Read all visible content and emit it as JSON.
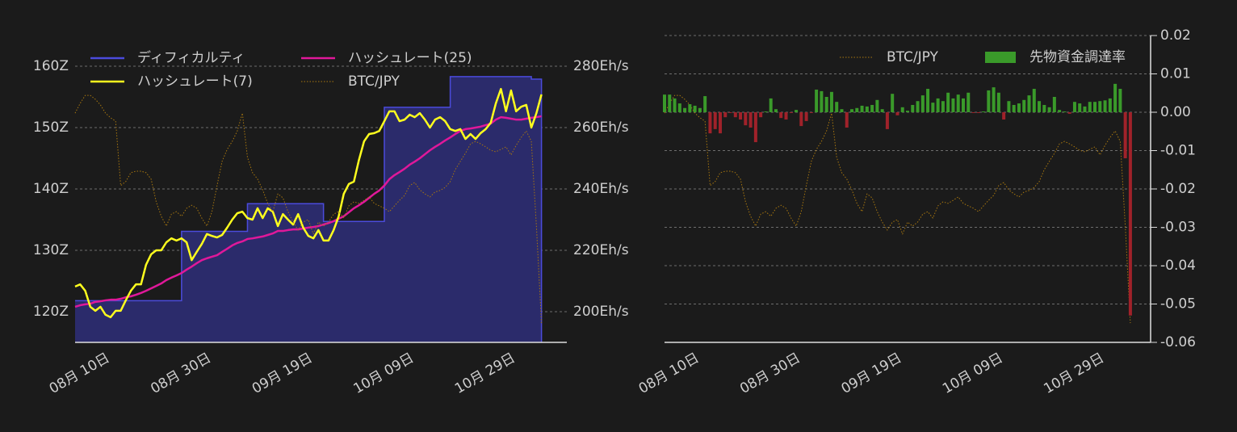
{
  "chart_data": [
    {
      "type": "line",
      "x": [
        "08-05",
        "08-06",
        "08-07",
        "08-08",
        "08-09",
        "08-10",
        "08-11",
        "08-12",
        "08-13",
        "08-14",
        "08-15",
        "08-16",
        "08-17",
        "08-18",
        "08-19",
        "08-20",
        "08-21",
        "08-22",
        "08-23",
        "08-24",
        "08-25",
        "08-26",
        "08-27",
        "08-28",
        "08-29",
        "08-30",
        "08-31",
        "09-01",
        "09-02",
        "09-03",
        "09-04",
        "09-05",
        "09-06",
        "09-07",
        "09-08",
        "09-09",
        "09-10",
        "09-11",
        "09-12",
        "09-13",
        "09-14",
        "09-15",
        "09-16",
        "09-17",
        "09-18",
        "09-19",
        "09-20",
        "09-21",
        "09-22",
        "09-23",
        "09-24",
        "09-25",
        "09-26",
        "09-27",
        "09-28",
        "09-29",
        "09-30",
        "10-01",
        "10-02",
        "10-03",
        "10-04",
        "10-05",
        "10-06",
        "10-07",
        "10-08",
        "10-09",
        "10-10",
        "10-11",
        "10-12",
        "10-13",
        "10-14",
        "10-15",
        "10-16",
        "10-17",
        "10-18",
        "10-19",
        "10-20",
        "10-21",
        "10-22",
        "10-23",
        "10-24",
        "10-25",
        "10-26",
        "10-27",
        "10-28",
        "10-29",
        "10-30",
        "10-31",
        "11-01",
        "11-02",
        "11-03",
        "11-04",
        "11-05"
      ],
      "xlim": [
        "08-05",
        "11-10"
      ],
      "xticks": [
        {
          "value": "08-10",
          "label": "08月 10日"
        },
        {
          "value": "08-30",
          "label": "08月 30日"
        },
        {
          "value": "09-19",
          "label": "09月 19日"
        },
        {
          "value": "10-09",
          "label": "10月 09日"
        },
        {
          "value": "10-29",
          "label": "10月 29日"
        }
      ],
      "ylim": [
        115,
        165
      ],
      "yticks": [
        {
          "value": 120,
          "label": "120Z"
        },
        {
          "value": 130,
          "label": "130Z"
        },
        {
          "value": 140,
          "label": "140Z"
        },
        {
          "value": 150,
          "label": "150Z"
        },
        {
          "value": 160,
          "label": "160Z"
        }
      ],
      "y2lim": [
        190,
        290
      ],
      "y2ticks": [
        {
          "value": 200,
          "label": "200Eh/s"
        },
        {
          "value": 220,
          "label": "220Eh/s"
        },
        {
          "value": 240,
          "label": "240Eh/s"
        },
        {
          "value": 260,
          "label": "260Eh/s"
        },
        {
          "value": 280,
          "label": "280Eh/s"
        }
      ],
      "y3lim": [
        2400000,
        3400000
      ],
      "grid": true,
      "legend": "top-left",
      "series": [
        {
          "name": "ディフィカルティ",
          "type": "area",
          "step": true,
          "color": "#4b4bdc",
          "fill_color": "#2b2b6b",
          "values": [
            121.8,
            121.8,
            121.8,
            121.8,
            121.8,
            121.8,
            121.8,
            121.8,
            121.8,
            121.8,
            121.8,
            121.8,
            121.8,
            121.8,
            121.8,
            121.8,
            121.8,
            121.8,
            121.8,
            121.8,
            121.8,
            133.1,
            133.1,
            133.1,
            133.1,
            133.1,
            133.1,
            133.1,
            133.1,
            133.1,
            133.1,
            133.1,
            133.1,
            133.1,
            137.6,
            137.6,
            137.6,
            137.6,
            137.6,
            137.6,
            137.6,
            137.6,
            137.6,
            137.6,
            137.6,
            137.6,
            137.6,
            137.6,
            137.6,
            134.7,
            134.7,
            134.7,
            134.7,
            134.7,
            134.7,
            134.7,
            134.7,
            134.7,
            134.7,
            134.7,
            134.7,
            153.3,
            153.3,
            153.3,
            153.3,
            153.3,
            153.3,
            153.3,
            153.3,
            153.3,
            153.3,
            153.3,
            153.3,
            153.3,
            158.3,
            158.3,
            158.3,
            158.3,
            158.3,
            158.3,
            158.3,
            158.3,
            158.3,
            158.3,
            158.3,
            158.3,
            158.3,
            158.3,
            158.3,
            158.3,
            157.9,
            157.9,
            157.9
          ]
        },
        {
          "name": "ハッシュレート(25)",
          "type": "line",
          "axis": "y2",
          "color": "#e0189a",
          "values": [
            201.6,
            202.1,
            202.4,
            202.6,
            203.2,
            203.4,
            203.7,
            203.9,
            203.9,
            204.2,
            204.7,
            205.0,
            205.5,
            206.1,
            206.8,
            207.6,
            208.4,
            209.2,
            210.3,
            211.1,
            211.8,
            212.6,
            213.7,
            214.7,
            215.8,
            216.8,
            217.4,
            217.9,
            218.4,
            219.5,
            220.5,
            221.6,
            222.4,
            222.9,
            223.7,
            223.9,
            224.2,
            224.5,
            225.0,
            225.5,
            226.3,
            226.3,
            226.6,
            226.8,
            226.8,
            227.1,
            227.4,
            227.6,
            227.9,
            228.4,
            228.9,
            229.5,
            230.3,
            231.1,
            232.4,
            233.7,
            234.7,
            235.8,
            237.1,
            238.4,
            239.5,
            241.1,
            243.2,
            244.5,
            245.5,
            246.6,
            247.9,
            248.9,
            250.0,
            251.3,
            252.6,
            253.7,
            254.7,
            255.8,
            256.8,
            257.9,
            258.9,
            259.5,
            259.7,
            260.0,
            260.3,
            260.8,
            261.3,
            262.6,
            263.4,
            263.2,
            262.9,
            262.6,
            262.6,
            262.9,
            263.2,
            263.4,
            263.7
          ]
        },
        {
          "name": "ハッシュレート(7)",
          "type": "line",
          "axis": "y2",
          "color": "#ffff1e",
          "values": [
            208.2,
            208.9,
            206.8,
            201.6,
            200.3,
            201.6,
            199.0,
            198.2,
            200.3,
            200.3,
            203.7,
            206.8,
            208.9,
            208.9,
            215.3,
            218.7,
            220.0,
            220.0,
            222.6,
            223.9,
            223.2,
            223.9,
            222.6,
            216.8,
            219.5,
            222.1,
            225.3,
            224.7,
            224.2,
            225.0,
            227.4,
            230.0,
            232.1,
            232.6,
            230.5,
            230.0,
            233.7,
            230.5,
            233.7,
            232.6,
            227.9,
            231.8,
            230.0,
            228.4,
            231.8,
            227.4,
            224.7,
            223.9,
            226.6,
            223.2,
            223.2,
            226.6,
            231.1,
            238.4,
            241.6,
            242.4,
            249.5,
            255.5,
            257.9,
            258.2,
            258.9,
            262.1,
            265.3,
            265.3,
            262.1,
            262.6,
            264.2,
            263.4,
            264.7,
            262.6,
            260.0,
            262.6,
            263.4,
            262.1,
            259.5,
            258.9,
            259.5,
            256.3,
            257.9,
            256.3,
            258.2,
            259.5,
            261.6,
            267.9,
            272.6,
            265.3,
            272.1,
            265.3,
            266.8,
            267.4,
            260.0,
            264.7,
            270.8
          ]
        },
        {
          "name": "BTC/JPY",
          "type": "line",
          "axis": "y3",
          "line_style": "dotted",
          "color": "#a8770f",
          "values": [
            3147000,
            3179000,
            3205000,
            3205000,
            3192000,
            3174000,
            3147000,
            3132000,
            3121000,
            2911000,
            2924000,
            2953000,
            2958000,
            2958000,
            2953000,
            2932000,
            2858000,
            2811000,
            2779000,
            2818000,
            2826000,
            2811000,
            2837000,
            2847000,
            2837000,
            2805000,
            2779000,
            2826000,
            2911000,
            2990000,
            3029000,
            3055000,
            3089000,
            3147000,
            3003000,
            2953000,
            2932000,
            2897000,
            2853000,
            2826000,
            2884000,
            2871000,
            2826000,
            2792000,
            2766000,
            2792000,
            2800000,
            2753000,
            2792000,
            2779000,
            2792000,
            2818000,
            2826000,
            2805000,
            2845000,
            2858000,
            2853000,
            2863000,
            2874000,
            2853000,
            2845000,
            2837000,
            2826000,
            2845000,
            2863000,
            2879000,
            2911000,
            2921000,
            2897000,
            2884000,
            2874000,
            2890000,
            2895000,
            2905000,
            2924000,
            2963000,
            2990000,
            3016000,
            3047000,
            3055000,
            3047000,
            3037000,
            3026000,
            3021000,
            3029000,
            3037000,
            3011000,
            3042000,
            3068000,
            3089000,
            3055000,
            2779000,
            2463000
          ]
        }
      ]
    },
    {
      "type": "bar",
      "x": [
        "08-05",
        "08-06",
        "08-07",
        "08-08",
        "08-09",
        "08-10",
        "08-11",
        "08-12",
        "08-13",
        "08-14",
        "08-15",
        "08-16",
        "08-17",
        "08-18",
        "08-19",
        "08-20",
        "08-21",
        "08-22",
        "08-23",
        "08-24",
        "08-25",
        "08-26",
        "08-27",
        "08-28",
        "08-29",
        "08-30",
        "08-31",
        "09-01",
        "09-02",
        "09-03",
        "09-04",
        "09-05",
        "09-06",
        "09-07",
        "09-08",
        "09-09",
        "09-10",
        "09-11",
        "09-12",
        "09-13",
        "09-14",
        "09-15",
        "09-16",
        "09-17",
        "09-18",
        "09-19",
        "09-20",
        "09-21",
        "09-22",
        "09-23",
        "09-24",
        "09-25",
        "09-26",
        "09-27",
        "09-28",
        "09-29",
        "09-30",
        "10-01",
        "10-02",
        "10-03",
        "10-04",
        "10-05",
        "10-06",
        "10-07",
        "10-08",
        "10-09",
        "10-10",
        "10-11",
        "10-12",
        "10-13",
        "10-14",
        "10-15",
        "10-16",
        "10-17",
        "10-18",
        "10-19",
        "10-20",
        "10-21",
        "10-22",
        "10-23",
        "10-24",
        "10-25",
        "10-26",
        "10-27",
        "10-28",
        "10-29",
        "10-30",
        "10-31",
        "11-01",
        "11-02",
        "11-03",
        "11-04",
        "11-05"
      ],
      "xlim": [
        "08-05",
        "11-09"
      ],
      "xticks": [
        {
          "value": "08-10",
          "label": "08月 10日"
        },
        {
          "value": "08-30",
          "label": "08月 30日"
        },
        {
          "value": "09-19",
          "label": "09月 19日"
        },
        {
          "value": "10-09",
          "label": "10月 09日"
        },
        {
          "value": "10-29",
          "label": "10月 29日"
        }
      ],
      "ylim": [
        -0.06,
        0.02
      ],
      "yticks": [
        0.02,
        0.01,
        {
          "value": 0,
          "label": "0.00"
        },
        -0.01,
        -0.02,
        -0.03,
        -0.04,
        -0.05,
        -0.06
      ],
      "y3lim": [
        2400000,
        3400000
      ],
      "grid": true,
      "legend": "top-right",
      "series": [
        {
          "name": "BTC/JPY",
          "type": "line",
          "axis": "y3",
          "line_style": "dotted",
          "color": "#a8770f",
          "values": [
            3147000,
            3179000,
            3205000,
            3205000,
            3192000,
            3174000,
            3147000,
            3132000,
            3121000,
            2911000,
            2924000,
            2953000,
            2958000,
            2958000,
            2953000,
            2932000,
            2858000,
            2811000,
            2779000,
            2818000,
            2826000,
            2811000,
            2837000,
            2847000,
            2837000,
            2805000,
            2779000,
            2826000,
            2911000,
            2990000,
            3029000,
            3055000,
            3089000,
            3147000,
            3003000,
            2953000,
            2932000,
            2897000,
            2853000,
            2826000,
            2884000,
            2871000,
            2826000,
            2792000,
            2766000,
            2792000,
            2800000,
            2753000,
            2792000,
            2779000,
            2792000,
            2818000,
            2826000,
            2805000,
            2845000,
            2858000,
            2853000,
            2863000,
            2874000,
            2853000,
            2845000,
            2837000,
            2826000,
            2845000,
            2863000,
            2879000,
            2911000,
            2921000,
            2897000,
            2884000,
            2874000,
            2890000,
            2895000,
            2905000,
            2924000,
            2963000,
            2990000,
            3016000,
            3047000,
            3055000,
            3047000,
            3037000,
            3026000,
            3021000,
            3029000,
            3037000,
            3011000,
            3042000,
            3068000,
            3089000,
            3055000,
            2779000,
            2463000
          ]
        },
        {
          "name": "先物資金調達率",
          "type": "bar",
          "color": "#3a9a2a",
          "negative_color": "#a0222a",
          "values": [
            0.0046,
            0.0046,
            0.0036,
            0.0023,
            0.0011,
            0.0021,
            0.0017,
            0.0011,
            0.0042,
            -0.0055,
            -0.0044,
            -0.0055,
            -0.0013,
            -0.0002,
            -0.0013,
            -0.0019,
            -0.0034,
            -0.004,
            -0.0078,
            -0.0013,
            0.0002,
            0.0036,
            0.0008,
            -0.0015,
            -0.0019,
            -0.0002,
            0.0006,
            -0.0036,
            -0.0023,
            -0.0002,
            0.0059,
            0.0055,
            0.004,
            0.0053,
            0.0027,
            0.0008,
            -0.004,
            0.0008,
            0.0011,
            0.0017,
            0.0015,
            0.0019,
            0.0032,
            0.0008,
            -0.0044,
            0.0048,
            -0.0008,
            0.0013,
            0.0004,
            0.0019,
            0.0029,
            0.0044,
            0.0061,
            0.0025,
            0.0036,
            0.0029,
            0.0051,
            0.0036,
            0.0046,
            0.0036,
            0.0051,
            -0.0002,
            -0.0002,
            0.0002,
            0.0057,
            0.0065,
            0.0051,
            -0.0019,
            0.0029,
            0.0019,
            0.0023,
            0.0032,
            0.0044,
            0.0061,
            0.0029,
            0.0019,
            0.0013,
            0.004,
            0.0006,
            0.0002,
            -0.0004,
            0.0027,
            0.0023,
            0.0015,
            0.0027,
            0.0027,
            0.0029,
            0.0031,
            0.0036,
            0.0074,
            0.0061,
            -0.012,
            -0.053
          ]
        }
      ]
    }
  ]
}
